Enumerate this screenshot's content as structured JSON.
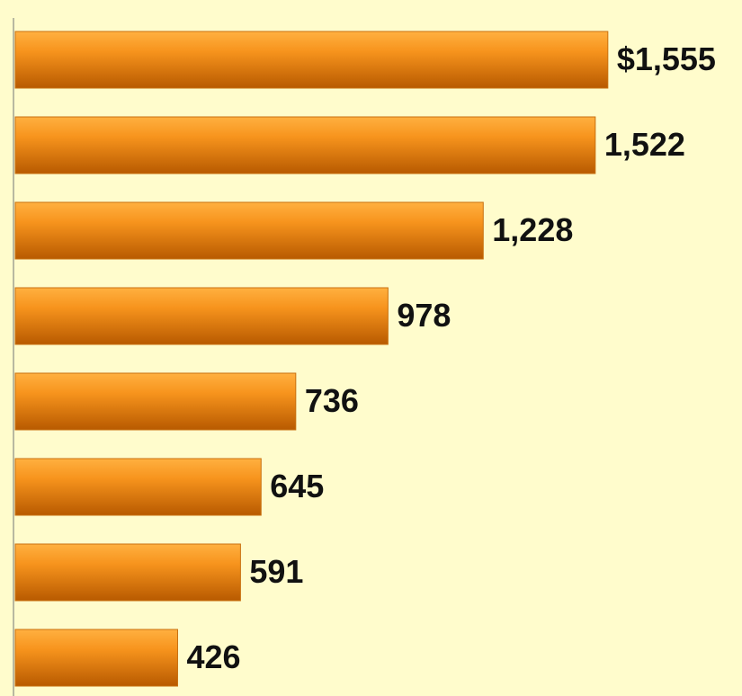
{
  "chart_data": {
    "type": "barh",
    "categories": [
      null,
      null,
      null,
      null,
      null,
      null,
      null,
      null
    ],
    "values": [
      1555,
      1522,
      1228,
      978,
      736,
      645,
      591,
      426
    ],
    "value_labels": [
      "$1,555",
      "1,522",
      "1,228",
      "978",
      "736",
      "645",
      "591",
      "426"
    ],
    "color": "#f7941d",
    "xlim": [
      0,
      1900
    ]
  }
}
